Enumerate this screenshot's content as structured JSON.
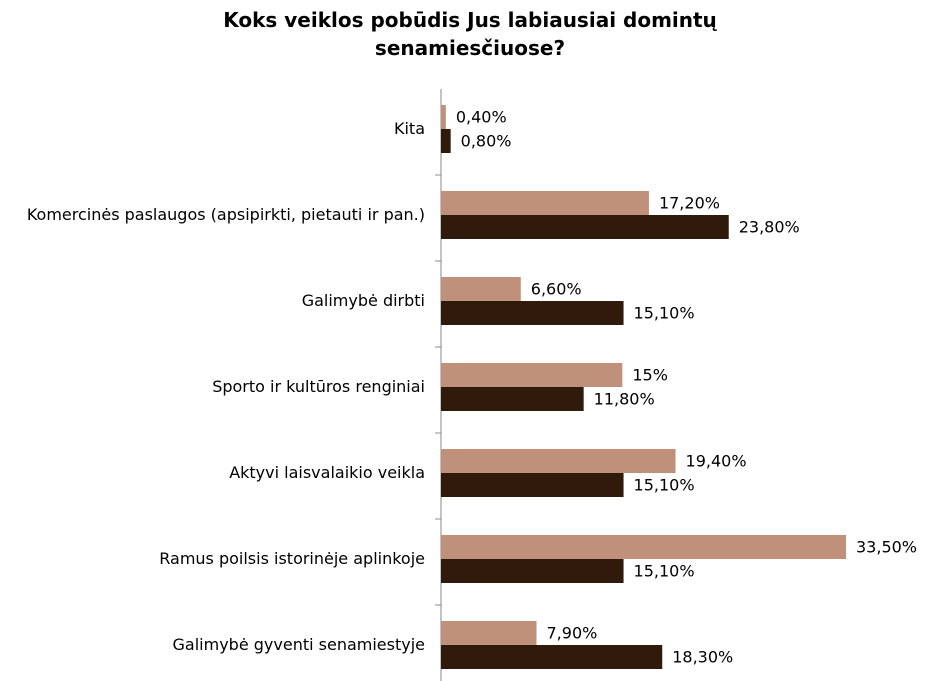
{
  "chart_data": {
    "type": "bar",
    "orientation": "horizontal",
    "title": "Koks veiklos pobūdis Jus labiausiai domintų senamiesčiuose?",
    "categories": [
      "Kita",
      "Komercinės paslaugos (apsipirkti, pietauti ir pan.)",
      "Galimybė dirbti",
      "Sporto ir kultūros renginiai",
      "Aktyvi laisvalaikio veikla",
      "Ramus poilsis istorinėje aplinkoje",
      "Galimybė gyventi senamiestyje"
    ],
    "series": [
      {
        "color": "#c0917a",
        "values": [
          0.4,
          17.2,
          6.6,
          15,
          19.4,
          33.5,
          7.9
        ],
        "value_labels": [
          "0,40%",
          "17,20%",
          "6,60%",
          "15%",
          "19,40%",
          "33,50%",
          "7,90%"
        ]
      },
      {
        "color": "#2f1a0b",
        "values": [
          0.8,
          23.8,
          15.1,
          11.8,
          15.1,
          15.1,
          18.3
        ],
        "value_labels": [
          "0,80%",
          "23,80%",
          "15,10%",
          "11,80%",
          "15,10%",
          "15,10%",
          "18,30%"
        ]
      }
    ]
  }
}
